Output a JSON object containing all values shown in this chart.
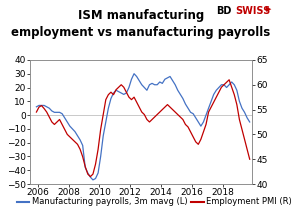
{
  "title_line1": "ISM manufacturing",
  "title_line2": "employment vs manufacturing payrolls",
  "blue_label": "Manufacturing payrolls, 3m mavg (L)",
  "red_label": "Employment PMI (R)",
  "left_ylim": [
    -50,
    40
  ],
  "right_ylim": [
    40,
    65
  ],
  "left_yticks": [
    -50,
    -40,
    -30,
    -20,
    -10,
    0,
    10,
    20,
    30,
    40
  ],
  "right_yticks": [
    40,
    45,
    50,
    55,
    60,
    65
  ],
  "xticks": [
    2006,
    2008,
    2010,
    2012,
    2014,
    2016,
    2018
  ],
  "xlim": [
    2005.5,
    2019.9
  ],
  "blue_color": "#4472C4",
  "red_color": "#C00000",
  "bg_color": "#FFFFFF",
  "grid_color": "#C0C0C0",
  "title_fontsize": 8.5,
  "tick_fontsize": 6.5,
  "legend_fontsize": 6,
  "bd_color": "#000000",
  "swiss_color": "#C00000",
  "blue_data": [
    [
      2005.917,
      6
    ],
    [
      2006.083,
      7
    ],
    [
      2006.25,
      7
    ],
    [
      2006.417,
      7
    ],
    [
      2006.583,
      6
    ],
    [
      2006.75,
      5
    ],
    [
      2006.917,
      3
    ],
    [
      2007.083,
      2
    ],
    [
      2007.25,
      2
    ],
    [
      2007.417,
      2
    ],
    [
      2007.583,
      1
    ],
    [
      2007.75,
      -2
    ],
    [
      2007.917,
      -5
    ],
    [
      2008.083,
      -8
    ],
    [
      2008.25,
      -10
    ],
    [
      2008.417,
      -12
    ],
    [
      2008.583,
      -15
    ],
    [
      2008.75,
      -18
    ],
    [
      2008.917,
      -22
    ],
    [
      2009.083,
      -38
    ],
    [
      2009.25,
      -42
    ],
    [
      2009.417,
      -45
    ],
    [
      2009.583,
      -47
    ],
    [
      2009.75,
      -46
    ],
    [
      2009.917,
      -42
    ],
    [
      2010.083,
      -30
    ],
    [
      2010.25,
      -15
    ],
    [
      2010.417,
      -5
    ],
    [
      2010.583,
      5
    ],
    [
      2010.75,
      12
    ],
    [
      2010.917,
      16
    ],
    [
      2011.083,
      18
    ],
    [
      2011.25,
      17
    ],
    [
      2011.417,
      16
    ],
    [
      2011.583,
      15
    ],
    [
      2011.75,
      16
    ],
    [
      2011.917,
      20
    ],
    [
      2012.083,
      26
    ],
    [
      2012.25,
      30
    ],
    [
      2012.417,
      28
    ],
    [
      2012.583,
      25
    ],
    [
      2012.75,
      22
    ],
    [
      2012.917,
      20
    ],
    [
      2013.083,
      18
    ],
    [
      2013.25,
      22
    ],
    [
      2013.417,
      23
    ],
    [
      2013.583,
      22
    ],
    [
      2013.75,
      22
    ],
    [
      2013.917,
      24
    ],
    [
      2014.083,
      23
    ],
    [
      2014.25,
      26
    ],
    [
      2014.417,
      27
    ],
    [
      2014.583,
      28
    ],
    [
      2014.75,
      25
    ],
    [
      2014.917,
      22
    ],
    [
      2015.083,
      18
    ],
    [
      2015.25,
      15
    ],
    [
      2015.417,
      12
    ],
    [
      2015.583,
      8
    ],
    [
      2015.75,
      5
    ],
    [
      2015.917,
      2
    ],
    [
      2016.083,
      1
    ],
    [
      2016.25,
      -2
    ],
    [
      2016.417,
      -5
    ],
    [
      2016.583,
      -8
    ],
    [
      2016.75,
      -5
    ],
    [
      2016.917,
      0
    ],
    [
      2017.083,
      5
    ],
    [
      2017.25,
      10
    ],
    [
      2017.417,
      15
    ],
    [
      2017.583,
      18
    ],
    [
      2017.75,
      20
    ],
    [
      2017.917,
      22
    ],
    [
      2018.083,
      22
    ],
    [
      2018.25,
      20
    ],
    [
      2018.417,
      22
    ],
    [
      2018.583,
      24
    ],
    [
      2018.75,
      22
    ],
    [
      2018.917,
      18
    ],
    [
      2019.083,
      10
    ],
    [
      2019.25,
      5
    ],
    [
      2019.417,
      2
    ],
    [
      2019.583,
      -2
    ],
    [
      2019.75,
      -5
    ]
  ],
  "red_data": [
    [
      2005.917,
      54.5
    ],
    [
      2006.083,
      55.5
    ],
    [
      2006.25,
      55.8
    ],
    [
      2006.417,
      55.2
    ],
    [
      2006.583,
      54.5
    ],
    [
      2006.75,
      53.5
    ],
    [
      2006.917,
      52.5
    ],
    [
      2007.083,
      52.0
    ],
    [
      2007.25,
      52.5
    ],
    [
      2007.417,
      53.0
    ],
    [
      2007.583,
      52.0
    ],
    [
      2007.75,
      51.0
    ],
    [
      2007.917,
      50.0
    ],
    [
      2008.083,
      49.5
    ],
    [
      2008.25,
      49.0
    ],
    [
      2008.417,
      48.5
    ],
    [
      2008.583,
      48.0
    ],
    [
      2008.75,
      47.0
    ],
    [
      2008.917,
      45.5
    ],
    [
      2009.083,
      43.5
    ],
    [
      2009.25,
      42.0
    ],
    [
      2009.417,
      41.5
    ],
    [
      2009.583,
      42.0
    ],
    [
      2009.75,
      44.0
    ],
    [
      2009.917,
      47.0
    ],
    [
      2010.083,
      51.0
    ],
    [
      2010.25,
      54.0
    ],
    [
      2010.417,
      57.0
    ],
    [
      2010.583,
      58.0
    ],
    [
      2010.75,
      58.5
    ],
    [
      2010.917,
      58.0
    ],
    [
      2011.083,
      59.0
    ],
    [
      2011.25,
      59.5
    ],
    [
      2011.417,
      60.0
    ],
    [
      2011.583,
      59.5
    ],
    [
      2011.75,
      58.5
    ],
    [
      2011.917,
      57.5
    ],
    [
      2012.083,
      57.0
    ],
    [
      2012.25,
      57.5
    ],
    [
      2012.417,
      56.5
    ],
    [
      2012.583,
      55.5
    ],
    [
      2012.75,
      54.5
    ],
    [
      2012.917,
      54.0
    ],
    [
      2013.083,
      53.0
    ],
    [
      2013.25,
      52.5
    ],
    [
      2013.417,
      53.0
    ],
    [
      2013.583,
      53.5
    ],
    [
      2013.75,
      54.0
    ],
    [
      2013.917,
      54.5
    ],
    [
      2014.083,
      55.0
    ],
    [
      2014.25,
      55.5
    ],
    [
      2014.417,
      56.0
    ],
    [
      2014.583,
      55.5
    ],
    [
      2014.75,
      55.0
    ],
    [
      2014.917,
      54.5
    ],
    [
      2015.083,
      54.0
    ],
    [
      2015.25,
      53.5
    ],
    [
      2015.417,
      53.0
    ],
    [
      2015.583,
      52.0
    ],
    [
      2015.75,
      51.5
    ],
    [
      2015.917,
      50.5
    ],
    [
      2016.083,
      49.5
    ],
    [
      2016.25,
      48.5
    ],
    [
      2016.417,
      48.0
    ],
    [
      2016.583,
      49.0
    ],
    [
      2016.75,
      50.5
    ],
    [
      2016.917,
      52.0
    ],
    [
      2017.083,
      54.5
    ],
    [
      2017.25,
      55.5
    ],
    [
      2017.417,
      56.5
    ],
    [
      2017.583,
      57.5
    ],
    [
      2017.75,
      58.5
    ],
    [
      2017.917,
      59.5
    ],
    [
      2018.083,
      60.0
    ],
    [
      2018.25,
      60.5
    ],
    [
      2018.417,
      61.0
    ],
    [
      2018.583,
      59.5
    ],
    [
      2018.75,
      58.0
    ],
    [
      2018.917,
      56.0
    ],
    [
      2019.083,
      53.0
    ],
    [
      2019.25,
      51.0
    ],
    [
      2019.417,
      49.0
    ],
    [
      2019.583,
      47.0
    ],
    [
      2019.75,
      45.0
    ]
  ]
}
